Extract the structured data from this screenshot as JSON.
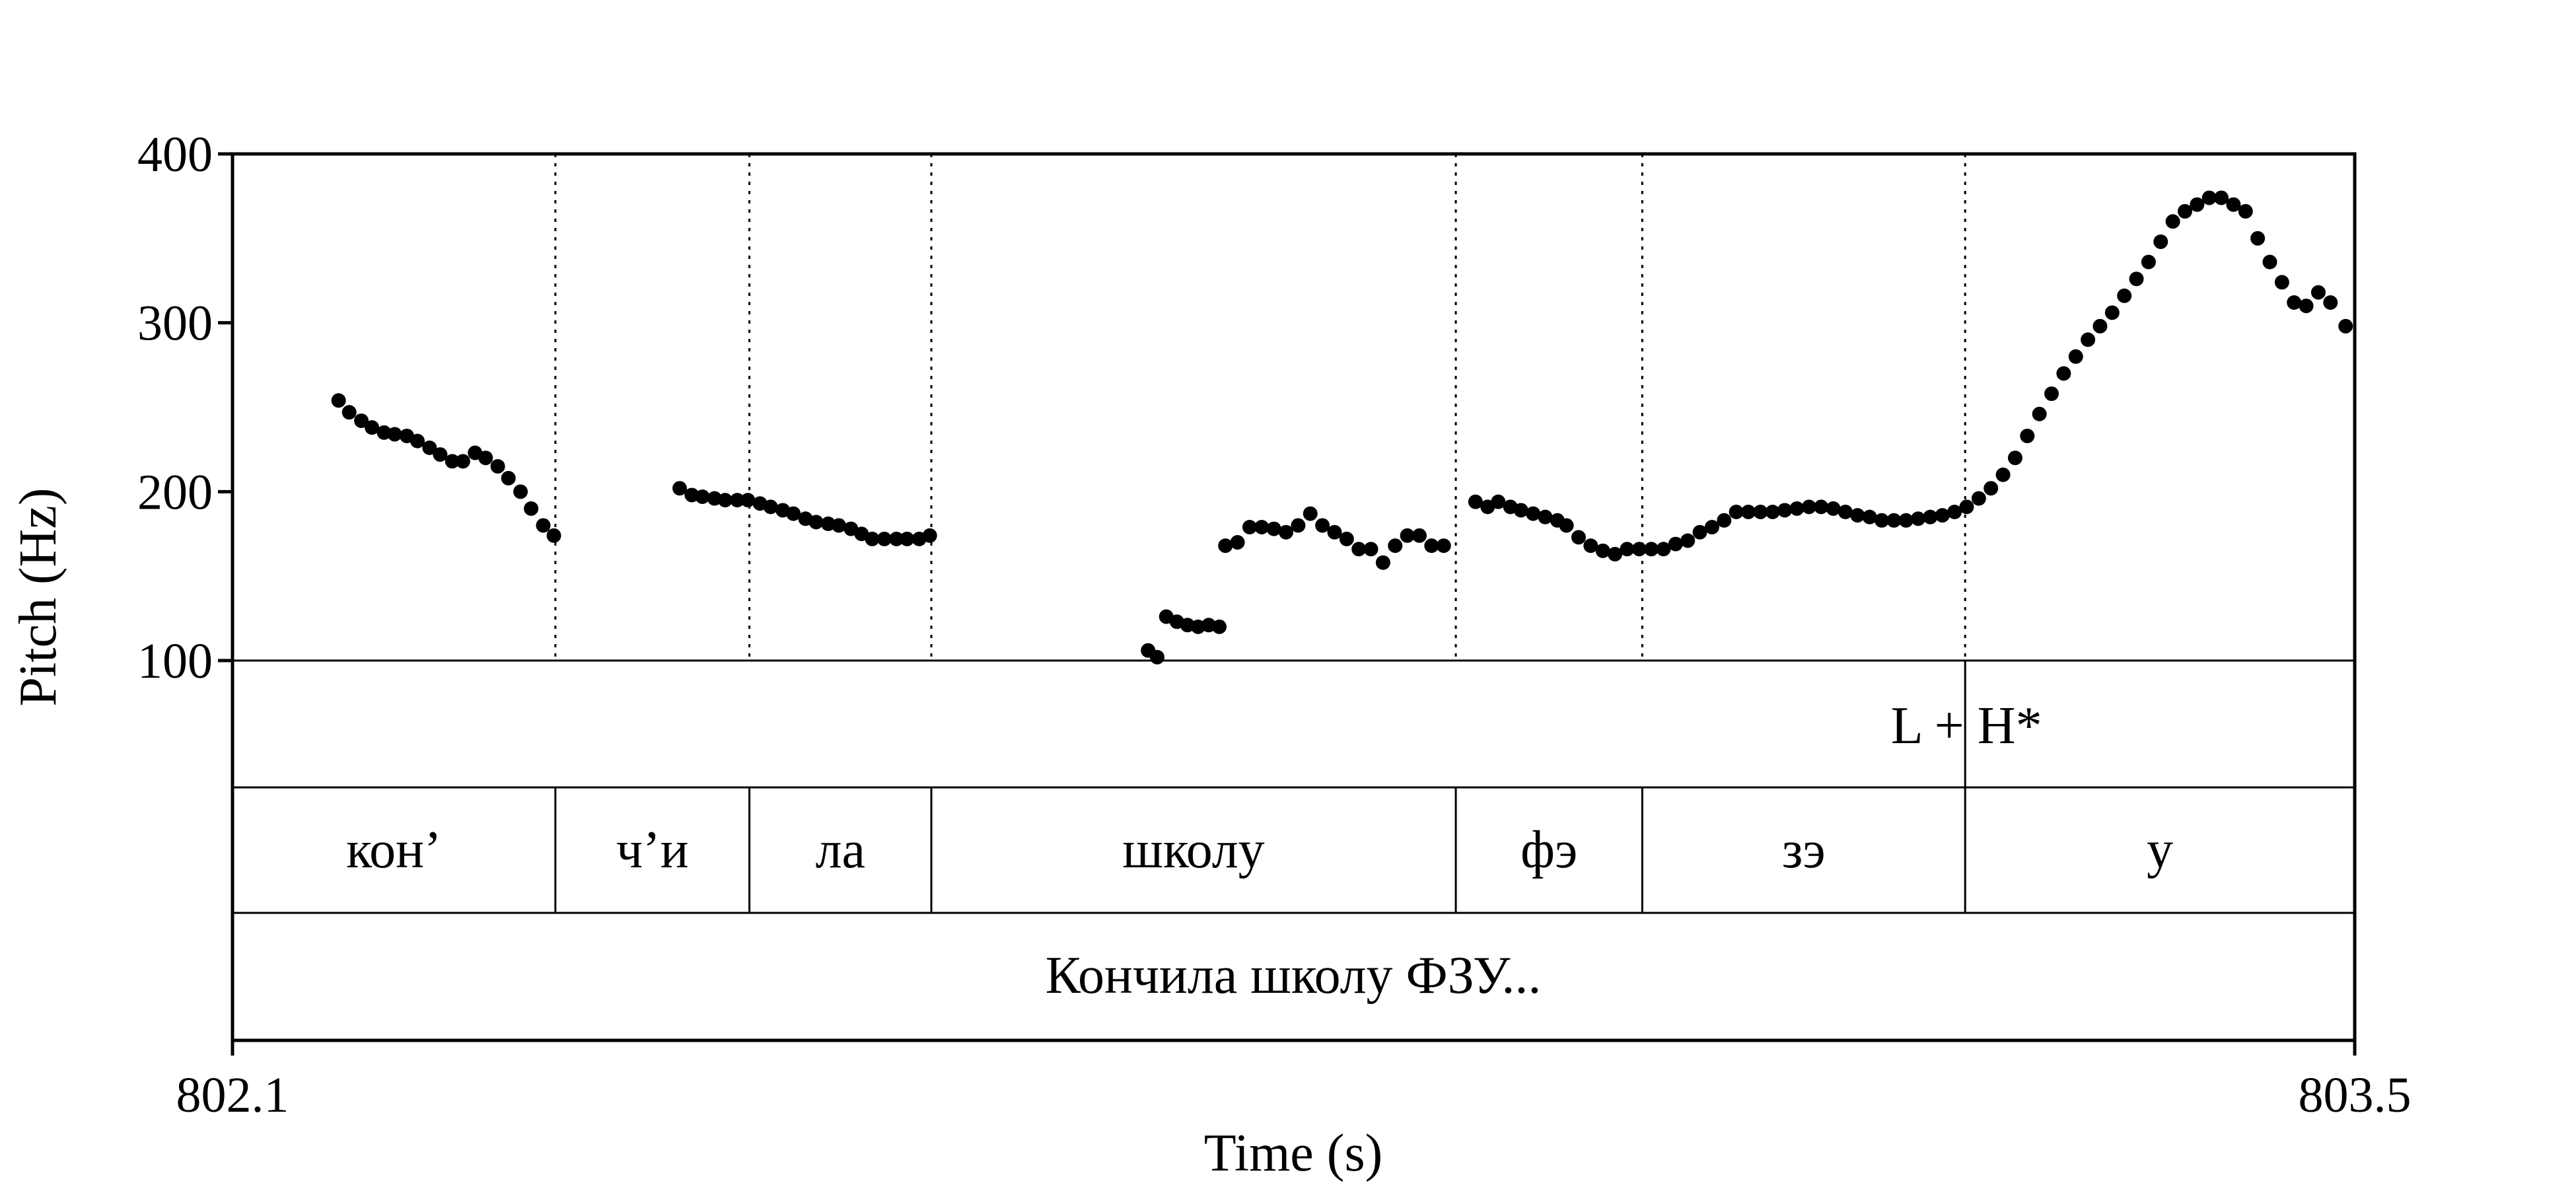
{
  "chart_data": {
    "type": "scatter",
    "xlabel": "Time (s)",
    "ylabel": "Pitch (Hz)",
    "xlim": [
      802.1,
      803.5
    ],
    "ylim": [
      100,
      400
    ],
    "x_tick_labels": [
      "802.1",
      "803.5"
    ],
    "y_ticks": [
      {
        "value": 100,
        "label": "100"
      },
      {
        "value": 200,
        "label": "200"
      },
      {
        "value": 300,
        "label": "300"
      },
      {
        "value": 400,
        "label": "400"
      }
    ],
    "syllable_boundaries": [
      802.313,
      802.441,
      802.561,
      802.907,
      803.03,
      803.243
    ],
    "tiers": {
      "tone": {
        "label": "L + H*",
        "boundary": 803.243
      },
      "syllables": [
        {
          "text": "кон’",
          "start": 802.1,
          "end": 802.313
        },
        {
          "text": "ч’и",
          "start": 802.313,
          "end": 802.441
        },
        {
          "text": "ла",
          "start": 802.441,
          "end": 802.561
        },
        {
          "text": "школу",
          "start": 802.561,
          "end": 802.907
        },
        {
          "text": "фэ",
          "start": 802.907,
          "end": 803.03
        },
        {
          "text": "зэ",
          "start": 803.03,
          "end": 803.243
        },
        {
          "text": "у",
          "start": 803.243,
          "end": 803.5
        }
      ],
      "sentence": "Кончила школу ФЗУ..."
    },
    "segments": [
      {
        "points": [
          [
            802.17,
            254
          ],
          [
            802.177,
            247
          ],
          [
            802.185,
            242
          ],
          [
            802.192,
            238
          ],
          [
            802.2,
            235
          ],
          [
            802.207,
            234
          ],
          [
            802.215,
            233
          ],
          [
            802.222,
            230
          ],
          [
            802.23,
            226
          ],
          [
            802.237,
            222
          ],
          [
            802.245,
            218
          ],
          [
            802.252,
            218
          ],
          [
            802.26,
            223
          ],
          [
            802.267,
            220
          ],
          [
            802.275,
            215
          ],
          [
            802.282,
            208
          ],
          [
            802.29,
            200
          ],
          [
            802.297,
            190
          ],
          [
            802.305,
            180
          ],
          [
            802.312,
            174
          ]
        ]
      },
      {
        "points": [
          [
            802.395,
            202
          ],
          [
            802.403,
            198
          ],
          [
            802.41,
            197
          ],
          [
            802.418,
            196
          ],
          [
            802.425,
            195
          ],
          [
            802.433,
            195
          ],
          [
            802.44,
            195
          ],
          [
            802.448,
            193
          ],
          [
            802.455,
            191
          ],
          [
            802.463,
            189
          ],
          [
            802.47,
            187
          ],
          [
            802.478,
            184
          ],
          [
            802.485,
            182
          ],
          [
            802.493,
            181
          ],
          [
            802.5,
            180
          ],
          [
            802.508,
            178
          ],
          [
            802.515,
            175
          ],
          [
            802.522,
            172
          ],
          [
            802.53,
            172
          ],
          [
            802.538,
            172
          ],
          [
            802.545,
            172
          ],
          [
            802.553,
            172
          ],
          [
            802.56,
            174
          ]
        ]
      },
      {
        "points": [
          [
            802.704,
            106
          ],
          [
            802.71,
            102
          ]
        ]
      },
      {
        "points": [
          [
            802.716,
            126
          ],
          [
            802.723,
            123
          ],
          [
            802.73,
            121
          ],
          [
            802.737,
            120
          ],
          [
            802.744,
            121
          ],
          [
            802.751,
            120
          ]
        ]
      },
      {
        "points": [
          [
            802.755,
            168
          ],
          [
            802.763,
            170
          ],
          [
            802.771,
            179
          ],
          [
            802.779,
            179
          ],
          [
            802.787,
            178
          ],
          [
            802.795,
            176
          ],
          [
            802.803,
            180
          ],
          [
            802.811,
            187
          ],
          [
            802.819,
            180
          ],
          [
            802.827,
            176
          ],
          [
            802.835,
            172
          ],
          [
            802.843,
            166
          ],
          [
            802.851,
            166
          ],
          [
            802.859,
            158
          ],
          [
            802.867,
            168
          ],
          [
            802.875,
            174
          ],
          [
            802.883,
            174
          ],
          [
            802.891,
            168
          ],
          [
            802.899,
            168
          ]
        ]
      },
      {
        "points": [
          [
            802.92,
            194
          ],
          [
            802.928,
            191
          ],
          [
            802.935,
            194
          ],
          [
            802.943,
            191
          ],
          [
            802.95,
            189
          ],
          [
            802.958,
            187
          ],
          [
            802.966,
            185
          ],
          [
            802.974,
            183
          ],
          [
            802.98,
            180
          ],
          [
            802.988,
            173
          ],
          [
            802.996,
            168
          ],
          [
            803.004,
            165
          ],
          [
            803.012,
            163
          ],
          [
            803.02,
            166
          ],
          [
            803.028,
            166
          ],
          [
            803.036,
            166
          ],
          [
            803.044,
            166
          ],
          [
            803.052,
            169
          ],
          [
            803.06,
            171
          ],
          [
            803.068,
            176
          ],
          [
            803.076,
            179
          ],
          [
            803.084,
            183
          ],
          [
            803.092,
            188
          ],
          [
            803.1,
            188
          ],
          [
            803.108,
            188
          ],
          [
            803.116,
            188
          ],
          [
            803.124,
            189
          ],
          [
            803.132,
            190
          ],
          [
            803.14,
            191
          ],
          [
            803.148,
            191
          ],
          [
            803.156,
            190
          ],
          [
            803.164,
            188
          ],
          [
            803.172,
            186
          ],
          [
            803.18,
            185
          ],
          [
            803.188,
            183
          ],
          [
            803.196,
            183
          ],
          [
            803.204,
            183
          ],
          [
            803.212,
            184
          ],
          [
            803.22,
            185
          ],
          [
            803.228,
            186
          ],
          [
            803.236,
            188
          ],
          [
            803.244,
            191
          ],
          [
            803.252,
            196
          ],
          [
            803.26,
            202
          ],
          [
            803.268,
            210
          ],
          [
            803.276,
            220
          ],
          [
            803.284,
            233
          ],
          [
            803.292,
            246
          ],
          [
            803.3,
            258
          ],
          [
            803.308,
            270
          ],
          [
            803.316,
            280
          ],
          [
            803.324,
            290
          ],
          [
            803.332,
            298
          ],
          [
            803.34,
            306
          ],
          [
            803.348,
            316
          ],
          [
            803.356,
            326
          ],
          [
            803.364,
            336
          ],
          [
            803.372,
            348
          ],
          [
            803.38,
            360
          ],
          [
            803.388,
            366
          ],
          [
            803.396,
            370
          ],
          [
            803.404,
            374
          ],
          [
            803.412,
            374
          ],
          [
            803.42,
            370
          ],
          [
            803.428,
            366
          ],
          [
            803.436,
            350
          ],
          [
            803.444,
            336
          ],
          [
            803.452,
            324
          ],
          [
            803.46,
            312
          ],
          [
            803.468,
            310
          ],
          [
            803.476,
            318
          ],
          [
            803.484,
            312
          ],
          [
            803.494,
            298
          ]
        ]
      }
    ]
  }
}
